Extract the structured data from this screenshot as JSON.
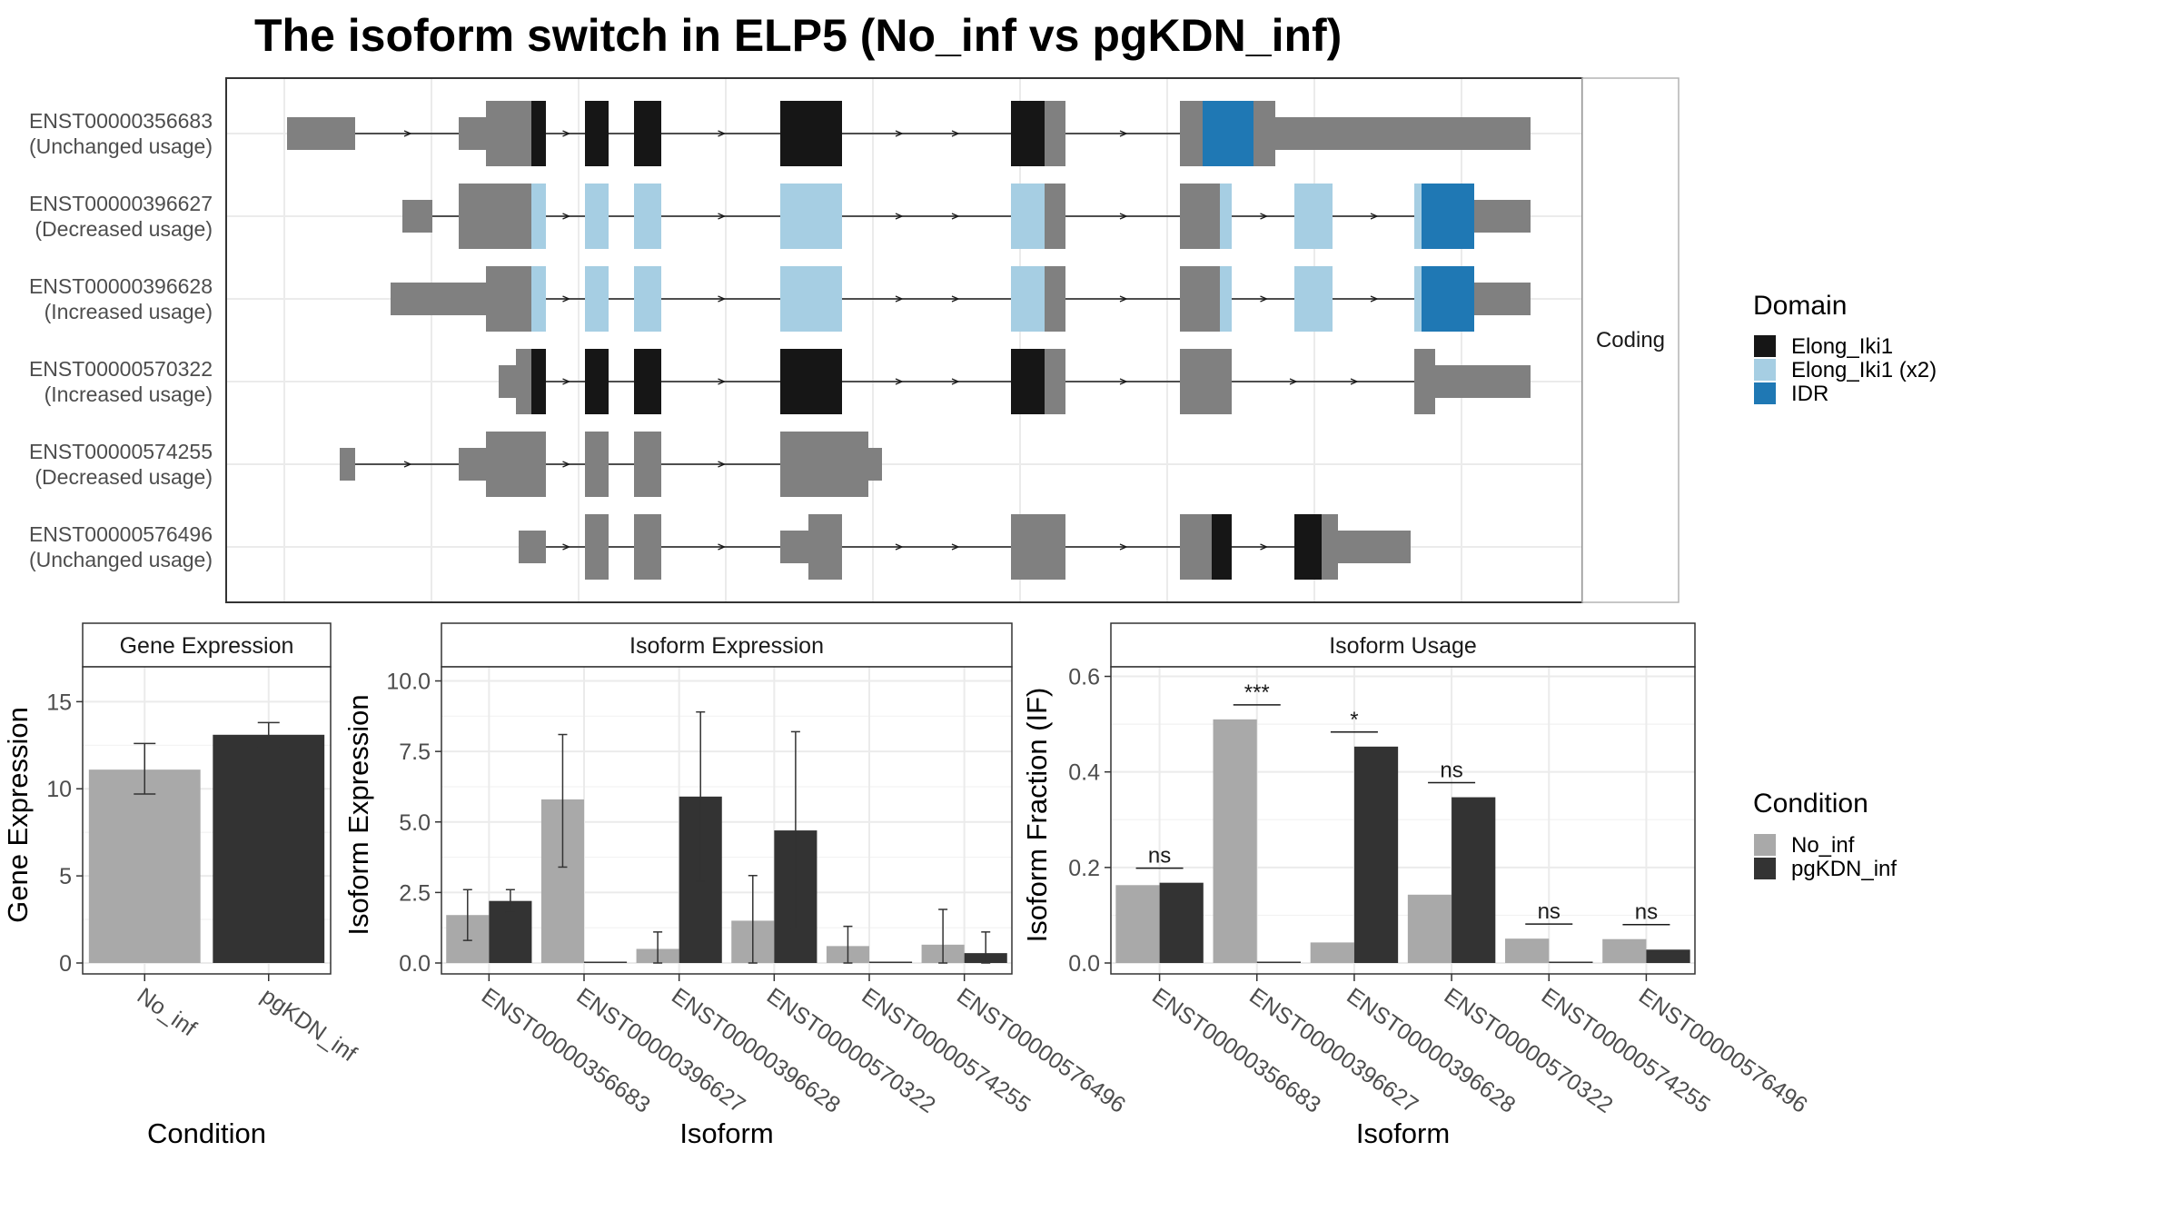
{
  "title": "The isoform switch in ELP5 (No_inf vs pgKDN_inf)",
  "colors": {
    "utr": "#808080",
    "no_inf": "#a9a9a9",
    "pgKDN_inf": "#333333",
    "domain_elong": "#161616",
    "domain_elong_x2": "#a6cee3",
    "domain_idr": "#1f78b4",
    "grid": "#ebebeb",
    "axis_text": "#4d4d4d"
  },
  "structure": {
    "strip_label": "Coding",
    "isoforms": [
      {
        "id": "ENST00000356683",
        "usage": "(Unchanged usage)"
      },
      {
        "id": "ENST00000396627",
        "usage": "(Decreased usage)"
      },
      {
        "id": "ENST00000396628",
        "usage": "(Increased usage)"
      },
      {
        "id": "ENST00000570322",
        "usage": "(Increased usage)"
      },
      {
        "id": "ENST00000574255",
        "usage": "(Decreased usage)"
      },
      {
        "id": "ENST00000576496",
        "usage": "(Unchanged usage)"
      }
    ]
  },
  "legends": {
    "domain": {
      "title": "Domain",
      "items": [
        {
          "label": "Elong_Iki1",
          "color": "#161616"
        },
        {
          "label": "Elong_Iki1 (x2)",
          "color": "#a6cee3"
        },
        {
          "label": "IDR",
          "color": "#1f78b4"
        }
      ]
    },
    "condition": {
      "title": "Condition",
      "items": [
        {
          "label": "No_inf",
          "color": "#a9a9a9"
        },
        {
          "label": "pgKDN_inf",
          "color": "#333333"
        }
      ]
    }
  },
  "chart_data": [
    {
      "type": "bar",
      "panel_title": "Gene Expression",
      "xlabel": "Condition",
      "ylabel": "Gene Expression",
      "ylim": [
        0,
        17
      ],
      "yticks": [
        "0",
        "5",
        "10",
        "15"
      ],
      "categories": [
        "No_inf",
        "pgKDN_inf"
      ],
      "values": [
        11.1,
        13.1
      ],
      "error_low": [
        9.7,
        12.4
      ],
      "error_high": [
        12.6,
        13.8
      ]
    },
    {
      "type": "bar",
      "panel_title": "Isoform Expression",
      "xlabel": "Isoform",
      "ylabel": "Isoform Expression",
      "ylim": [
        0,
        10.5
      ],
      "yticks": [
        "0.0",
        "2.5",
        "5.0",
        "7.5",
        "10.0"
      ],
      "categories": [
        "ENST00000356683",
        "ENST00000396627",
        "ENST00000396628",
        "ENST00000570322",
        "ENST00000574255",
        "ENST00000576496"
      ],
      "series": [
        {
          "name": "No_inf",
          "values": [
            1.7,
            5.8,
            0.5,
            1.5,
            0.6,
            0.65
          ],
          "error_low": [
            0.8,
            3.4,
            0.0,
            0.0,
            0.0,
            0.0
          ],
          "error_high": [
            2.6,
            8.1,
            1.1,
            3.1,
            1.3,
            1.9
          ]
        },
        {
          "name": "pgKDN_inf",
          "values": [
            2.2,
            0.0,
            5.9,
            4.7,
            0.0,
            0.35
          ],
          "error_low": [
            1.8,
            0.0,
            2.9,
            1.2,
            0.0,
            0.0
          ],
          "error_high": [
            2.6,
            0.0,
            8.9,
            8.2,
            0.0,
            1.1
          ]
        }
      ]
    },
    {
      "type": "bar",
      "panel_title": "Isoform Usage",
      "xlabel": "Isoform",
      "ylabel": "Isoform Fraction (IF)",
      "ylim": [
        0,
        0.62
      ],
      "yticks": [
        "0.0",
        "0.2",
        "0.4",
        "0.6"
      ],
      "categories": [
        "ENST00000356683",
        "ENST00000396627",
        "ENST00000396628",
        "ENST00000570322",
        "ENST00000574255",
        "ENST00000576496"
      ],
      "series": [
        {
          "name": "No_inf",
          "values": [
            0.163,
            0.51,
            0.043,
            0.143,
            0.051,
            0.05
          ]
        },
        {
          "name": "pgKDN_inf",
          "values": [
            0.168,
            0.0,
            0.453,
            0.347,
            0.0,
            0.028
          ]
        }
      ],
      "significance": [
        "ns",
        "***",
        "*",
        "ns",
        "ns",
        "ns"
      ]
    }
  ]
}
